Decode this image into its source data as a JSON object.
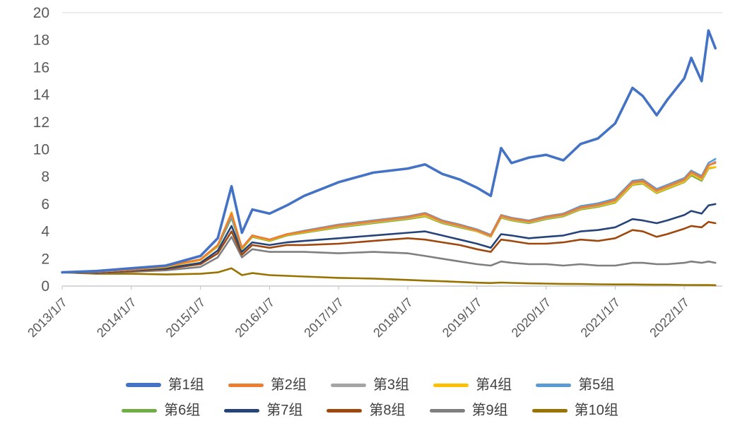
{
  "chart_data": {
    "type": "line",
    "title": "",
    "xlabel": "",
    "ylabel": "",
    "xlim": [
      2013.0,
      2022.55
    ],
    "ylim": [
      0,
      20
    ],
    "y_ticks": [
      0,
      2,
      4,
      6,
      8,
      10,
      12,
      14,
      16,
      18,
      20
    ],
    "x_ticks": [
      {
        "pos": 2013,
        "label": "2013/1/7"
      },
      {
        "pos": 2014,
        "label": "2014/1/7"
      },
      {
        "pos": 2015,
        "label": "2015/1/7"
      },
      {
        "pos": 2016,
        "label": "2016/1/7"
      },
      {
        "pos": 2017,
        "label": "2017/1/7"
      },
      {
        "pos": 2018,
        "label": "2018/1/7"
      },
      {
        "pos": 2019,
        "label": "2019/1/7"
      },
      {
        "pos": 2020,
        "label": "2020/1/7"
      },
      {
        "pos": 2021,
        "label": "2021/1/7"
      },
      {
        "pos": 2022,
        "label": "2022/1/7"
      }
    ],
    "axis_text_color": "#595959",
    "axis_line_color": "#bfbfbf",
    "grid_color": "#d9d9d9",
    "legend_position": "bottom",
    "legend_columns": 5,
    "x": [
      2013.0,
      2013.5,
      2014.0,
      2014.5,
      2015.0,
      2015.25,
      2015.45,
      2015.6,
      2015.75,
      2016.0,
      2016.25,
      2016.5,
      2017.0,
      2017.5,
      2018.0,
      2018.25,
      2018.5,
      2018.75,
      2019.0,
      2019.2,
      2019.35,
      2019.5,
      2019.75,
      2020.0,
      2020.25,
      2020.5,
      2020.75,
      2021.0,
      2021.25,
      2021.4,
      2021.6,
      2021.75,
      2022.0,
      2022.1,
      2022.25,
      2022.35,
      2022.45
    ],
    "series": [
      {
        "id": "group-1",
        "name": "第1组",
        "color": "#4472C4",
        "stroke_width": 3.6,
        "values": [
          1.0,
          1.1,
          1.3,
          1.5,
          2.2,
          3.5,
          7.3,
          3.9,
          5.6,
          5.3,
          5.9,
          6.6,
          7.6,
          8.3,
          8.6,
          8.9,
          8.2,
          7.8,
          7.2,
          6.6,
          10.1,
          9.0,
          9.4,
          9.6,
          9.2,
          10.4,
          10.8,
          11.9,
          14.5,
          13.9,
          12.5,
          13.6,
          15.2,
          16.7,
          15.0,
          18.7,
          17.4
        ]
      },
      {
        "id": "group-2",
        "name": "第2组",
        "color": "#ED7D31",
        "stroke_width": 2.6,
        "values": [
          1.0,
          1.05,
          1.2,
          1.45,
          1.95,
          3.0,
          5.3,
          2.8,
          3.7,
          3.4,
          3.8,
          4.0,
          4.45,
          4.75,
          5.05,
          5.3,
          4.75,
          4.45,
          4.1,
          3.7,
          5.15,
          4.95,
          4.75,
          5.05,
          5.25,
          5.75,
          5.95,
          6.3,
          7.6,
          7.7,
          7.0,
          7.3,
          7.8,
          8.35,
          7.95,
          8.85,
          9.0
        ]
      },
      {
        "id": "group-3",
        "name": "第3组",
        "color": "#A5A5A5",
        "stroke_width": 2.6,
        "values": [
          1.0,
          1.05,
          1.2,
          1.45,
          1.95,
          3.0,
          5.2,
          2.8,
          3.7,
          3.4,
          3.8,
          4.0,
          4.4,
          4.7,
          5.0,
          5.25,
          4.7,
          4.4,
          4.05,
          3.65,
          5.1,
          4.9,
          4.7,
          5.0,
          5.2,
          5.7,
          5.9,
          6.25,
          7.55,
          7.65,
          6.95,
          7.25,
          7.75,
          8.3,
          7.9,
          8.8,
          9.1
        ]
      },
      {
        "id": "group-4",
        "name": "第4组",
        "color": "#FFC000",
        "stroke_width": 2.6,
        "values": [
          1.0,
          1.05,
          1.2,
          1.4,
          1.9,
          2.95,
          5.4,
          2.75,
          3.65,
          3.35,
          3.75,
          3.95,
          4.35,
          4.65,
          4.95,
          5.15,
          4.65,
          4.35,
          4.0,
          3.6,
          5.05,
          4.85,
          4.65,
          4.95,
          5.15,
          5.65,
          5.85,
          6.15,
          7.45,
          7.55,
          6.85,
          7.15,
          7.65,
          8.2,
          7.8,
          8.65,
          8.7
        ]
      },
      {
        "id": "group-5",
        "name": "第5组",
        "color": "#5B9BD5",
        "stroke_width": 2.6,
        "values": [
          1.0,
          1.05,
          1.2,
          1.45,
          1.95,
          3.0,
          5.1,
          2.8,
          3.7,
          3.4,
          3.8,
          4.05,
          4.5,
          4.8,
          5.1,
          5.35,
          4.8,
          4.5,
          4.15,
          3.75,
          5.2,
          5.0,
          4.8,
          5.1,
          5.3,
          5.85,
          6.05,
          6.4,
          7.7,
          7.8,
          7.1,
          7.4,
          7.9,
          8.45,
          8.05,
          9.0,
          9.3
        ]
      },
      {
        "id": "group-6",
        "name": "第6组",
        "color": "#70AD47",
        "stroke_width": 2.6,
        "values": [
          1.0,
          1.05,
          1.2,
          1.4,
          1.9,
          2.9,
          5.0,
          2.7,
          3.6,
          3.3,
          3.7,
          3.9,
          4.3,
          4.6,
          4.9,
          5.1,
          4.6,
          4.3,
          4.0,
          3.6,
          5.0,
          4.8,
          4.6,
          4.9,
          5.1,
          5.6,
          5.8,
          6.1,
          7.4,
          7.5,
          6.8,
          7.1,
          7.6,
          8.1,
          7.7,
          8.6,
          8.7
        ]
      },
      {
        "id": "group-7",
        "name": "第7组",
        "color": "#264478",
        "stroke_width": 2.6,
        "values": [
          1.0,
          1.0,
          1.15,
          1.3,
          1.7,
          2.6,
          4.4,
          2.5,
          3.2,
          3.0,
          3.2,
          3.3,
          3.5,
          3.7,
          3.9,
          4.0,
          3.7,
          3.4,
          3.1,
          2.8,
          3.8,
          3.7,
          3.5,
          3.6,
          3.7,
          4.0,
          4.1,
          4.3,
          4.9,
          4.8,
          4.6,
          4.8,
          5.2,
          5.5,
          5.3,
          5.9,
          6.0
        ]
      },
      {
        "id": "group-8",
        "name": "第8组",
        "color": "#9E480E",
        "stroke_width": 2.6,
        "values": [
          1.0,
          0.97,
          1.1,
          1.25,
          1.6,
          2.4,
          4.0,
          2.3,
          3.0,
          2.8,
          3.0,
          3.0,
          3.1,
          3.3,
          3.5,
          3.4,
          3.2,
          3.0,
          2.7,
          2.5,
          3.4,
          3.3,
          3.1,
          3.1,
          3.2,
          3.4,
          3.3,
          3.5,
          4.1,
          4.0,
          3.6,
          3.8,
          4.2,
          4.4,
          4.3,
          4.7,
          4.6
        ]
      },
      {
        "id": "group-9",
        "name": "第9组",
        "color": "#7F7F7F",
        "stroke_width": 2.6,
        "values": [
          1.0,
          0.95,
          1.05,
          1.15,
          1.4,
          2.1,
          3.6,
          2.1,
          2.7,
          2.5,
          2.5,
          2.5,
          2.4,
          2.5,
          2.4,
          2.2,
          2.0,
          1.8,
          1.6,
          1.5,
          1.8,
          1.7,
          1.6,
          1.6,
          1.5,
          1.6,
          1.5,
          1.5,
          1.7,
          1.7,
          1.6,
          1.6,
          1.7,
          1.8,
          1.7,
          1.8,
          1.7
        ]
      },
      {
        "id": "group-10",
        "name": "第10组",
        "color": "#997300",
        "stroke_width": 2.6,
        "values": [
          1.0,
          0.9,
          0.9,
          0.85,
          0.9,
          1.0,
          1.3,
          0.8,
          0.95,
          0.8,
          0.75,
          0.7,
          0.6,
          0.55,
          0.45,
          0.4,
          0.35,
          0.3,
          0.25,
          0.22,
          0.26,
          0.23,
          0.2,
          0.18,
          0.16,
          0.15,
          0.13,
          0.12,
          0.12,
          0.11,
          0.1,
          0.1,
          0.08,
          0.08,
          0.07,
          0.07,
          0.06
        ]
      }
    ]
  }
}
